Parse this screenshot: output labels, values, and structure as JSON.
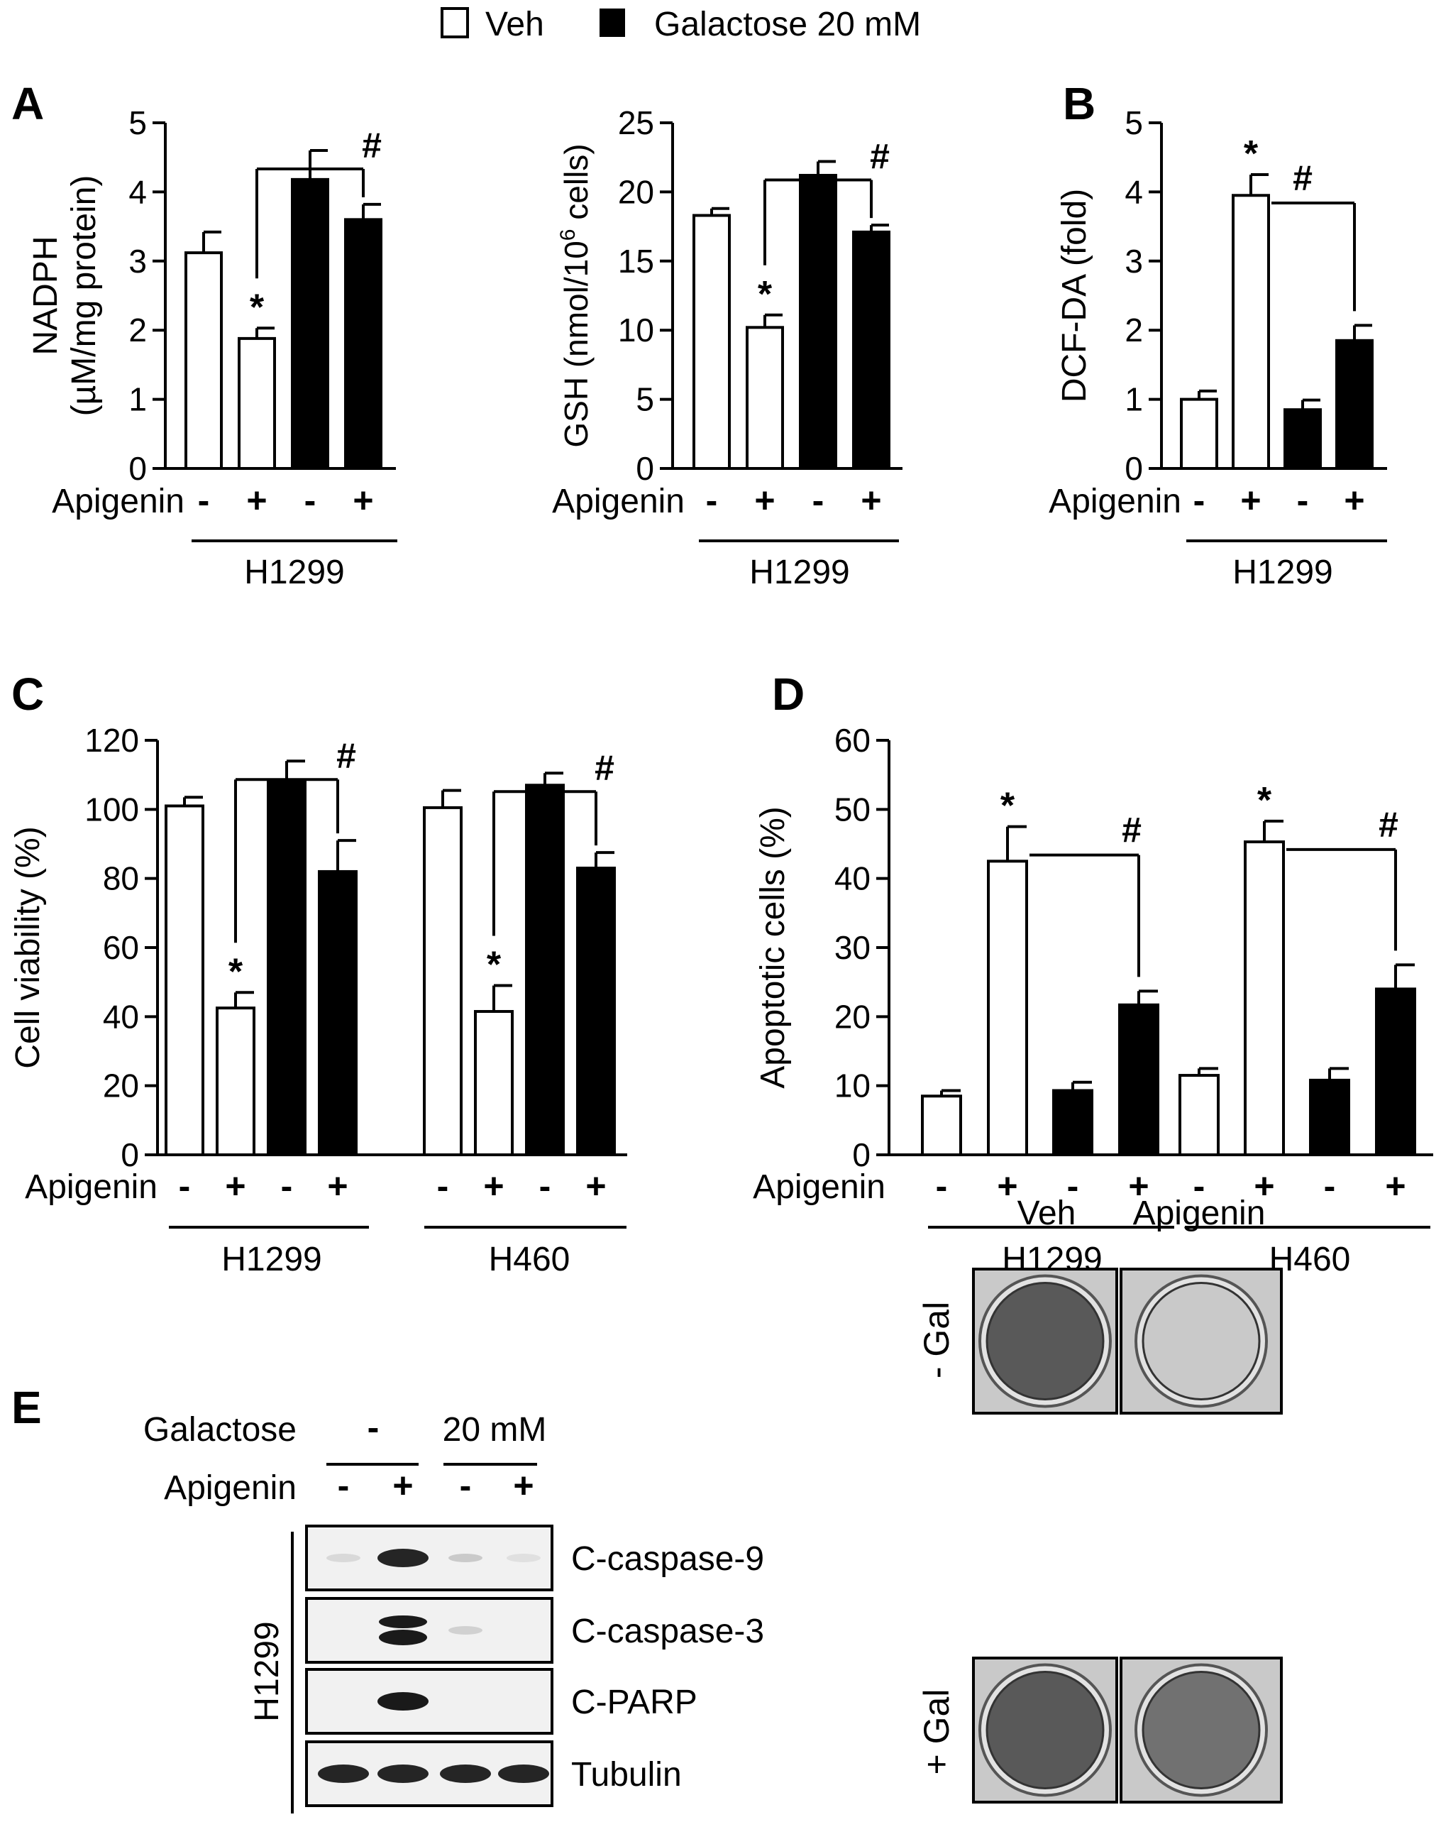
{
  "legend": {
    "items": [
      {
        "label": "Veh",
        "color": "#ffffff"
      },
      {
        "label": "Galactose 20 mM",
        "color": "#000000"
      }
    ]
  },
  "panel_letters": [
    "A",
    "B",
    "C",
    "D",
    "E"
  ],
  "treatment_label": "Apigenin",
  "treatment_signs": [
    "-",
    "+",
    "-",
    "+"
  ],
  "chart_data": [
    {
      "panel": "A",
      "type": "bar",
      "ylabel_line1": "NADPH",
      "ylabel_line2": "(µM/mg protein)",
      "ylim": [
        0,
        5
      ],
      "yticks": [
        "0",
        "1",
        "2",
        "3",
        "4",
        "5"
      ],
      "groups": [
        {
          "label": "H1299",
          "values": [
            3.12,
            1.88,
            4.18,
            3.6
          ],
          "errors": [
            0.3,
            0.15,
            0.42,
            0.22
          ]
        }
      ],
      "sig": [
        {
          "mark": "*",
          "bar": 1
        }
      ],
      "brackets": [
        {
          "from": 1,
          "to": 3,
          "mark": "#"
        }
      ]
    },
    {
      "panel": "A",
      "type": "bar",
      "ylabel_line1": "GSH (nmol/10",
      "ylabel_sup": "6",
      "ylabel_tail": " cells)",
      "ylim": [
        0,
        25
      ],
      "yticks": [
        "0",
        "5",
        "10",
        "15",
        "20",
        "25"
      ],
      "groups": [
        {
          "label": "H1299",
          "values": [
            18.3,
            10.2,
            21.2,
            17.1
          ],
          "errors": [
            0.5,
            0.9,
            1.0,
            0.5
          ]
        }
      ],
      "sig": [
        {
          "mark": "*",
          "bar": 1
        }
      ],
      "brackets": [
        {
          "from": 1,
          "to": 3,
          "mark": "#"
        }
      ]
    },
    {
      "panel": "B",
      "type": "bar",
      "ylabel_line1": "DCF-DA (fold)",
      "ylim": [
        0,
        5
      ],
      "yticks": [
        "0",
        "1",
        "2",
        "3",
        "4",
        "5"
      ],
      "groups": [
        {
          "label": "H1299",
          "values": [
            1.0,
            3.95,
            0.85,
            1.85
          ],
          "errors": [
            0.12,
            0.3,
            0.14,
            0.22
          ]
        }
      ],
      "sig": [
        {
          "mark": "*",
          "bar": 1
        }
      ],
      "brackets": [
        {
          "from": 1,
          "to": 3,
          "mark": "#"
        }
      ]
    },
    {
      "panel": "C",
      "type": "bar",
      "ylabel_line1": "Cell viability (%)",
      "ylim": [
        0,
        120
      ],
      "yticks": [
        "0",
        "20",
        "40",
        "60",
        "80",
        "100",
        "120"
      ],
      "groups": [
        {
          "label": "H1299",
          "values": [
            101,
            42.5,
            108.5,
            82
          ],
          "errors": [
            2.5,
            4.5,
            5.5,
            9
          ]
        },
        {
          "label": "H460",
          "values": [
            100.5,
            41.5,
            107,
            83
          ],
          "errors": [
            5,
            7.5,
            3.5,
            4.5
          ]
        }
      ],
      "sig": [
        {
          "mark": "*",
          "group": 0,
          "bar": 1
        },
        {
          "mark": "*",
          "group": 1,
          "bar": 1
        }
      ],
      "brackets": [
        {
          "group": 0,
          "from": 1,
          "to": 3,
          "mark": "#"
        },
        {
          "group": 1,
          "from": 1,
          "to": 3,
          "mark": "#"
        }
      ]
    },
    {
      "panel": "D",
      "type": "bar",
      "ylabel_line1": "Apoptotic cells (%)",
      "ylim": [
        0,
        60
      ],
      "yticks": [
        "0",
        "10",
        "20",
        "30",
        "40",
        "50",
        "60"
      ],
      "groups": [
        {
          "label": "H1299",
          "values": [
            8.5,
            42.5,
            9.3,
            21.7
          ],
          "errors": [
            0.8,
            5,
            1.2,
            2
          ]
        },
        {
          "label": "H460",
          "values": [
            11.5,
            45.3,
            10.8,
            24
          ],
          "errors": [
            1,
            3,
            1.7,
            3.5
          ]
        }
      ],
      "sig": [
        {
          "mark": "*",
          "group": 0,
          "bar": 1
        },
        {
          "mark": "*",
          "group": 1,
          "bar": 1
        }
      ],
      "brackets": [
        {
          "group": 0,
          "from": 1,
          "to": 3,
          "mark": "#"
        },
        {
          "group": 1,
          "from": 1,
          "to": 3,
          "mark": "#"
        }
      ]
    }
  ],
  "panel_e": {
    "galactose_label": "Galactose",
    "galactose_minus": "-",
    "galactose_20mm": "20 mM",
    "apigenin_label": "Apigenin",
    "signs": [
      "-",
      "+",
      "-",
      "+"
    ],
    "cell_line": "H1299",
    "bands": [
      {
        "label": "C-caspase-9",
        "intensity": [
          0.08,
          0.9,
          0.15,
          0.05
        ]
      },
      {
        "label": "C-caspase-3",
        "intensity": [
          0.0,
          0.95,
          0.12,
          0.0
        ]
      },
      {
        "label": "C-PARP",
        "intensity": [
          0.0,
          0.95,
          0.0,
          0.0
        ]
      },
      {
        "label": "Tubulin",
        "intensity": [
          0.9,
          0.9,
          0.9,
          0.9
        ]
      }
    ],
    "colony": {
      "col_labels": [
        "Veh",
        "Apigenin"
      ],
      "row_labels": [
        "- Gal",
        "+ Gal"
      ],
      "density": [
        [
          0.85,
          0.15
        ],
        [
          0.85,
          0.7
        ]
      ]
    }
  }
}
